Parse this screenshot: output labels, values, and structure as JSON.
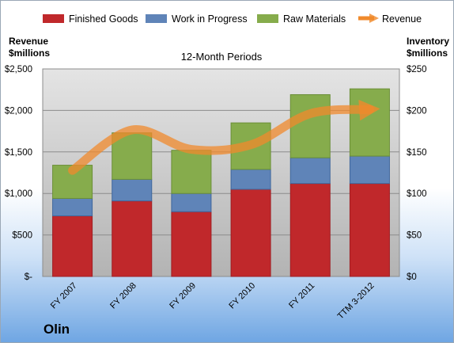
{
  "chart_data": {
    "type": "bar",
    "stacked": true,
    "title": "12-Month Periods",
    "company": "Olin",
    "categories": [
      "FY 2007",
      "FY 2008",
      "FY 2009",
      "FY 2010",
      "FY 2011",
      "TTM 3-2012"
    ],
    "left_axis": {
      "label_line1": "Revenue",
      "label_line2": "$millions",
      "ticks": [
        "$-",
        "$500",
        "$1,000",
        "$1,500",
        "$2,000",
        "$2,500"
      ],
      "ylim": [
        0,
        2500
      ]
    },
    "right_axis": {
      "label_line1": "Inventory",
      "label_line2": "$millions",
      "ticks": [
        "$0",
        "$50",
        "$100",
        "$150",
        "$200",
        "$250"
      ],
      "ylim": [
        0,
        250
      ]
    },
    "series": [
      {
        "name": "Finished Goods",
        "axis": "right",
        "color": "#c0282b",
        "values": [
          73,
          91,
          78,
          105,
          112,
          112
        ]
      },
      {
        "name": "Work in Progress",
        "axis": "right",
        "color": "#5f84b8",
        "values": [
          21,
          26,
          22,
          24,
          31,
          33
        ]
      },
      {
        "name": "Raw Materials",
        "axis": "right",
        "color": "#86ac4c",
        "values": [
          40,
          56,
          52,
          56,
          76,
          81
        ]
      }
    ],
    "line_series": {
      "name": "Revenue",
      "axis": "left",
      "color": "#f08a2c",
      "values": [
        1277,
        1765,
        1531,
        1586,
        1961,
        2012
      ]
    },
    "grid": true,
    "legend_position": "top"
  }
}
